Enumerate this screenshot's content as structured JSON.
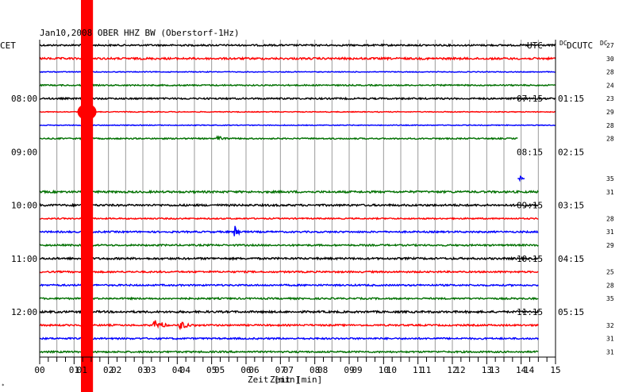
{
  "chart_data": {
    "type": "line",
    "title": "Jan10,2008   OBER HHZ BW (Oberstorf-1Hz)",
    "left_axis_label": "CET",
    "right_axis_label_1": "UTC",
    "right_axis_label_2": "DCUTC",
    "dc_label_top": "DC",
    "dc_label_row2": "DC",
    "xlabel": "Zeit [min]",
    "xlabel_overlap": "Zeit [min]",
    "xlim": [
      0,
      15
    ],
    "x_ticks": [
      "00",
      "01",
      "02",
      "03",
      "04",
      "05",
      "06",
      "07",
      "08",
      "09",
      "10",
      "11",
      "12",
      "13",
      "14",
      "15"
    ],
    "x_ticks_overlap": [
      "00",
      "01",
      "02",
      "03",
      "04",
      "05",
      "06",
      "07",
      "08",
      "09",
      "10",
      "11",
      "12",
      "13",
      "14",
      "15"
    ],
    "grid": true,
    "trace_colors": [
      "#000000",
      "#ff0000",
      "#0000ff",
      "#007000"
    ],
    "time_labels": [
      {
        "row": 4,
        "cet": "08:00",
        "utc": "07:15",
        "utc2": "01:15"
      },
      {
        "row": 8,
        "cet": "09:00",
        "utc": "08:15",
        "utc2": "02:15"
      },
      {
        "row": 12,
        "cet": "10:00",
        "utc": "09:15",
        "utc2": "03:15"
      },
      {
        "row": 16,
        "cet": "11:00",
        "utc": "10:15",
        "utc2": "04:15"
      },
      {
        "row": 20,
        "cet": "12:00",
        "utc": "11:15",
        "utc2": "05:15"
      }
    ],
    "dc_values": [
      "27",
      "30",
      "28",
      "24",
      "23",
      "29",
      "28",
      "28",
      "",
      "",
      "35",
      "31",
      "",
      "28",
      "31",
      "29",
      "",
      "25",
      "28",
      "35",
      "",
      "32",
      "31",
      "31"
    ],
    "traces": [
      {
        "row": 0,
        "end_min": 15,
        "noise": 1.0,
        "events": []
      },
      {
        "row": 1,
        "end_min": 15,
        "noise": 1.2,
        "events": []
      },
      {
        "row": 2,
        "end_min": 15,
        "noise": 0.5,
        "events": []
      },
      {
        "row": 3,
        "end_min": 15,
        "noise": 0.8,
        "events": []
      },
      {
        "row": 4,
        "end_min": 15,
        "noise": 1.0,
        "events": []
      },
      {
        "row": 5,
        "end_min": 15,
        "noise": 0.5,
        "events": []
      },
      {
        "row": 6,
        "end_min": 15,
        "noise": 0.5,
        "events": []
      },
      {
        "row": 7,
        "end_min": 13.9,
        "noise": 0.8,
        "events": [
          {
            "t": 5.2,
            "amp": 3,
            "dur": 0.6
          }
        ]
      },
      {
        "row": 8,
        "end_min": 0,
        "noise": 0,
        "events": []
      },
      {
        "row": 9,
        "end_min": 0,
        "noise": 0,
        "events": []
      },
      {
        "row": 10,
        "end_min": 14.1,
        "start_min": 13.9,
        "noise": 0,
        "events": [
          {
            "t": 14.0,
            "amp": 3,
            "dur": 0.1
          }
        ]
      },
      {
        "row": 11,
        "end_min": 14.5,
        "noise": 1.2,
        "events": []
      },
      {
        "row": 12,
        "end_min": 14.5,
        "noise": 1.2,
        "events": []
      },
      {
        "row": 13,
        "end_min": 14.5,
        "noise": 0.8,
        "events": []
      },
      {
        "row": 14,
        "end_min": 14.5,
        "noise": 1.0,
        "events": [
          {
            "t": 5.7,
            "amp": 8,
            "dur": 0.25
          }
        ]
      },
      {
        "row": 15,
        "end_min": 14.5,
        "noise": 1.0,
        "events": []
      },
      {
        "row": 16,
        "end_min": 14.5,
        "noise": 1.2,
        "events": []
      },
      {
        "row": 17,
        "end_min": 14.5,
        "noise": 1.0,
        "events": []
      },
      {
        "row": 18,
        "end_min": 14.5,
        "noise": 1.0,
        "events": []
      },
      {
        "row": 19,
        "end_min": 14.5,
        "noise": 1.0,
        "events": []
      },
      {
        "row": 20,
        "end_min": 14.5,
        "noise": 1.2,
        "events": []
      },
      {
        "row": 21,
        "end_min": 14.5,
        "noise": 1.0,
        "events": [
          {
            "t": 3.35,
            "amp": 7,
            "dur": 0.6
          },
          {
            "t": 4.1,
            "amp": 6,
            "dur": 0.7
          }
        ]
      },
      {
        "row": 22,
        "end_min": 14.5,
        "noise": 1.0,
        "events": []
      },
      {
        "row": 23,
        "end_min": 14.5,
        "noise": 1.0,
        "events": []
      }
    ],
    "red_band": {
      "from_min": 1.2,
      "to_min": 1.55
    }
  }
}
